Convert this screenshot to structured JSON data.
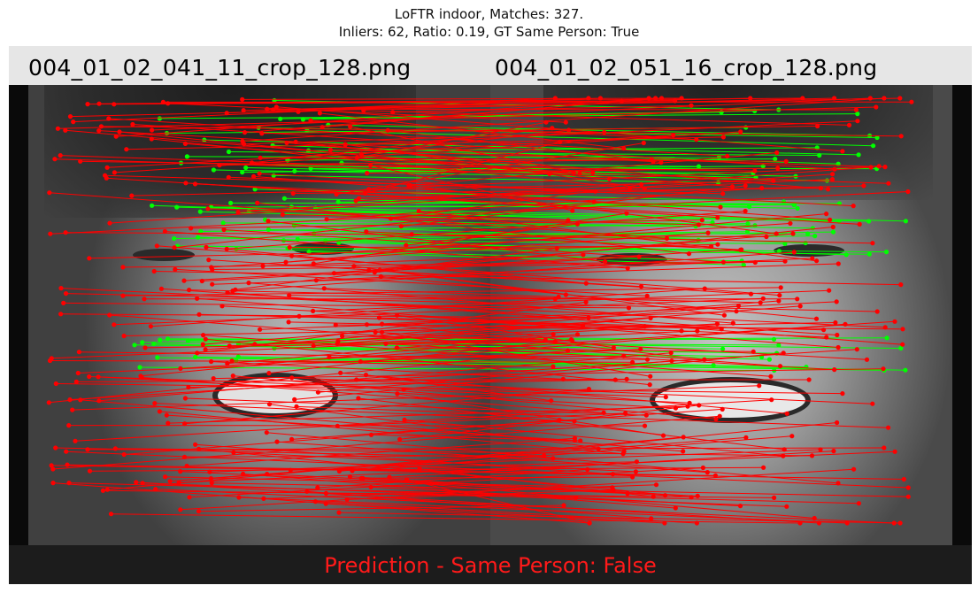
{
  "title": {
    "line1": "LoFTR indoor, Matches: 327.",
    "line2": "Inliers: 62, Ratio: 0.19, GT Same Person: True"
  },
  "images": {
    "left_filename": "004_01_02_041_11_crop_128.png",
    "right_filename": "004_01_02_051_16_crop_128.png"
  },
  "matches": {
    "total": 327,
    "inliers": 62,
    "ratio": 0.19,
    "inlier_color": "#00ff00",
    "outlier_color": "#ff0000"
  },
  "ground_truth_same_person": true,
  "prediction_label": "Prediction - Same Person: False",
  "prediction_color": "#ff1a1a"
}
